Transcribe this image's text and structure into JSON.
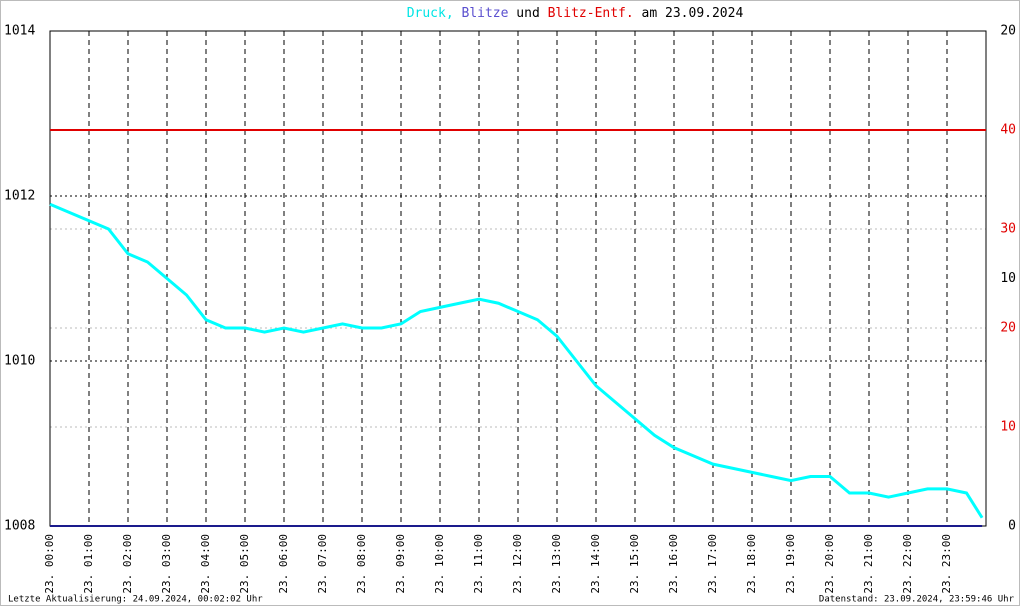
{
  "chart_data": {
    "type": "line",
    "title_parts": [
      {
        "text": "Druck,",
        "color": "#00e5e5"
      },
      {
        "text": "Blitze",
        "color": "#5a4fcf"
      },
      {
        "text": "und",
        "color": "#000000"
      },
      {
        "text": "Blitz-Entf.",
        "color": "#e00000"
      },
      {
        "text": "am 23.09.2024",
        "color": "#000000"
      }
    ],
    "x": [
      0,
      0.5,
      1,
      1.5,
      2,
      2.5,
      3,
      3.5,
      4,
      4.5,
      5,
      5.5,
      6,
      6.5,
      7,
      7.5,
      8,
      8.5,
      9,
      9.5,
      10,
      10.5,
      11,
      11.5,
      12,
      12.5,
      13,
      13.5,
      14,
      14.5,
      15,
      15.5,
      16,
      16.5,
      17,
      17.5,
      18,
      18.5,
      19,
      19.5,
      20,
      20.5,
      21,
      21.5,
      22,
      22.5,
      23,
      23.5,
      23.9
    ],
    "series": [
      {
        "color": "#00ffff",
        "values": [
          1011.9,
          1011.8,
          1011.7,
          1011.6,
          1011.3,
          1011.2,
          1011.0,
          1010.8,
          1010.5,
          1010.4,
          1010.4,
          1010.35,
          1010.4,
          1010.35,
          1010.4,
          1010.45,
          1010.4,
          1010.4,
          1010.45,
          1010.6,
          1010.65,
          1010.7,
          1010.75,
          1010.7,
          1010.6,
          1010.5,
          1010.3,
          1010.0,
          1009.7,
          1009.5,
          1009.3,
          1009.1,
          1008.95,
          1008.85,
          1008.75,
          1008.7,
          1008.65,
          1008.6,
          1008.55,
          1008.6,
          1008.6,
          1008.4,
          1008.4,
          1008.35,
          1008.4,
          1008.45,
          1008.45,
          1008.4,
          1008.1
        ]
      },
      {
        "color": "#1a1a8c",
        "axis": "y2",
        "x": [
          0,
          23.9
        ],
        "values": [
          0,
          0
        ]
      }
    ],
    "hlines": [
      {
        "value": 40,
        "axis": "y3",
        "color": "#e00000"
      }
    ],
    "xlim": [
      0,
      24
    ],
    "xticks": [
      {
        "value": 0,
        "label": "23. 00:00"
      },
      {
        "value": 1,
        "label": "23. 01:00"
      },
      {
        "value": 2,
        "label": "23. 02:00"
      },
      {
        "value": 3,
        "label": "23. 03:00"
      },
      {
        "value": 4,
        "label": "23. 04:00"
      },
      {
        "value": 5,
        "label": "23. 05:00"
      },
      {
        "value": 6,
        "label": "23. 06:00"
      },
      {
        "value": 7,
        "label": "23. 07:00"
      },
      {
        "value": 8,
        "label": "23. 08:00"
      },
      {
        "value": 9,
        "label": "23. 09:00"
      },
      {
        "value": 10,
        "label": "23. 10:00"
      },
      {
        "value": 11,
        "label": "23. 11:00"
      },
      {
        "value": 12,
        "label": "23. 12:00"
      },
      {
        "value": 13,
        "label": "23. 13:00"
      },
      {
        "value": 14,
        "label": "23. 14:00"
      },
      {
        "value": 15,
        "label": "23. 15:00"
      },
      {
        "value": 16,
        "label": "23. 16:00"
      },
      {
        "value": 17,
        "label": "23. 17:00"
      },
      {
        "value": 18,
        "label": "23. 18:00"
      },
      {
        "value": 19,
        "label": "23. 19:00"
      },
      {
        "value": 20,
        "label": "23. 20:00"
      },
      {
        "value": 21,
        "label": "23. 21:00"
      },
      {
        "value": 22,
        "label": "23. 22:00"
      },
      {
        "value": 23,
        "label": "23. 23:00"
      }
    ],
    "ylim": [
      1008,
      1014
    ],
    "yticks": [
      1008,
      1010,
      1012,
      1014
    ],
    "y2lim": [
      0,
      20
    ],
    "y2ticks": [
      0,
      10,
      20
    ],
    "y3lim": [
      0,
      50
    ],
    "y3ticks": [
      10,
      20,
      30,
      40
    ],
    "y3color": "#e00000",
    "footer_left": "Letzte Aktualisierung: 24.09.2024, 00:02:02 Uhr",
    "footer_right": "Datenstand: 23.09.2024, 23:59:46 Uhr"
  }
}
